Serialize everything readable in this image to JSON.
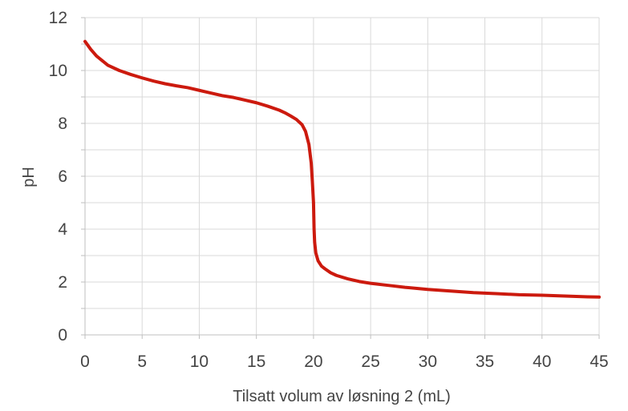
{
  "chart_data": {
    "type": "line",
    "title": "",
    "xlabel": "Tilsatt volum av løsning 2 (mL)",
    "ylabel": "pH",
    "xlim": [
      0,
      45
    ],
    "ylim": [
      0,
      12
    ],
    "x_ticks": [
      0,
      5,
      10,
      15,
      20,
      25,
      30,
      35,
      40,
      45
    ],
    "y_ticks": [
      0,
      2,
      4,
      6,
      8,
      10,
      12
    ],
    "grid": true,
    "legend": "none",
    "colors": {
      "line": "#cc1a0e",
      "grid": "#d9d9d9",
      "text": "#444444"
    },
    "series": [
      {
        "x": [
          0,
          0.5,
          1,
          2,
          3,
          4,
          5,
          6,
          7,
          8,
          9,
          10,
          11,
          12,
          13,
          14,
          15,
          16,
          17,
          17.5,
          18,
          18.5,
          19,
          19.3,
          19.6,
          19.8,
          19.9,
          20,
          20.05,
          20.1,
          20.2,
          20.4,
          20.7,
          21,
          21.5,
          22,
          23,
          24,
          25,
          26,
          27,
          28,
          30,
          32,
          34,
          36,
          38,
          40,
          42,
          44,
          45
        ],
        "y": [
          11.1,
          10.8,
          10.55,
          10.2,
          10.0,
          9.85,
          9.72,
          9.6,
          9.5,
          9.42,
          9.35,
          9.25,
          9.15,
          9.05,
          8.98,
          8.88,
          8.78,
          8.65,
          8.5,
          8.4,
          8.28,
          8.15,
          7.95,
          7.7,
          7.2,
          6.5,
          5.8,
          5.0,
          4.0,
          3.5,
          3.1,
          2.8,
          2.6,
          2.5,
          2.35,
          2.25,
          2.12,
          2.02,
          1.95,
          1.9,
          1.85,
          1.8,
          1.72,
          1.66,
          1.6,
          1.56,
          1.52,
          1.5,
          1.47,
          1.44,
          1.43
        ]
      }
    ]
  }
}
